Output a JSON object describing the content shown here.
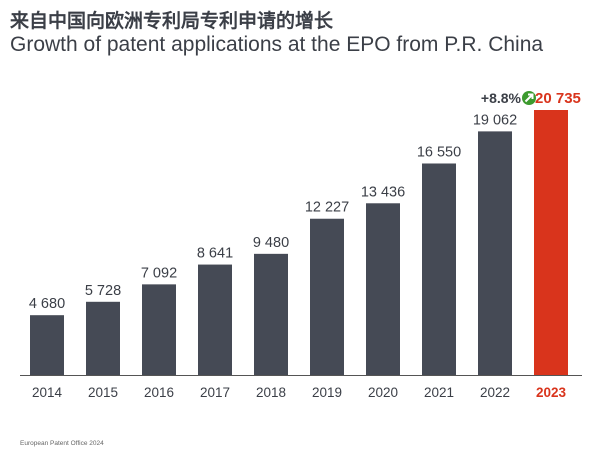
{
  "title_zh": "来自中国向欧洲专利局专利申请的增长",
  "title_en": "Growth of patent applications at the EPO from P.R. China",
  "footer": "European Patent Office 2024",
  "chart_data": {
    "type": "bar",
    "categories": [
      "2014",
      "2015",
      "2016",
      "2017",
      "2018",
      "2019",
      "2020",
      "2021",
      "2022",
      "2023"
    ],
    "values": [
      4680,
      5728,
      7092,
      8641,
      9480,
      12227,
      13436,
      16550,
      19062,
      20735
    ],
    "value_labels": [
      "4 680",
      "5 728",
      "7 092",
      "8 641",
      "9 480",
      "12 227",
      "13 436",
      "16 550",
      "19 062",
      "20 735"
    ],
    "highlight_index": 9,
    "annotation": "+8.8%",
    "annotation_icon": "arrow-up-right-icon",
    "colors": {
      "bar": "#454a55",
      "highlight": "#d9341c",
      "icon": "#3c9a2e",
      "text": "#3b3f47"
    },
    "ylim": [
      0,
      20735
    ],
    "grid": false
  }
}
